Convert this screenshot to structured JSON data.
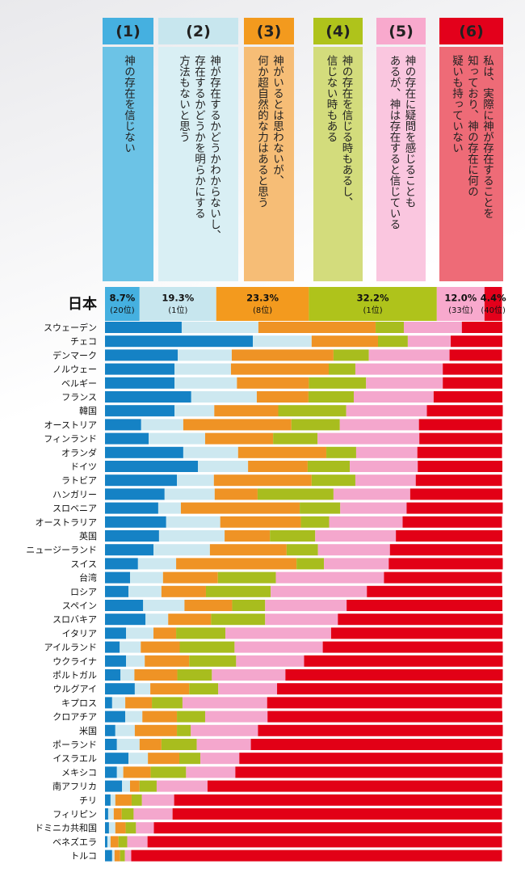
{
  "chart_data": {
    "type": "stacked-bar-horizontal",
    "series": [
      {
        "name": "(1)",
        "lines": [
          "神の存在を信じない"
        ],
        "color": "#1582c5",
        "header_color": "#45b0e0",
        "panel_color": "#6cc3e6",
        "values": [
          19.3,
          37.2,
          18.3,
          17.5,
          17.5,
          21.7,
          17.5,
          9.1,
          11.0,
          19.7,
          23.4,
          18.1,
          15.0,
          13.4,
          15.4,
          13.6,
          12.2,
          8.3,
          6.3,
          5.9,
          9.6,
          10.2,
          5.3,
          3.7,
          5.3,
          3.9,
          7.5,
          1.8,
          5.1,
          2.6,
          3.0,
          5.9,
          3.0,
          4.3,
          1.4,
          0.8,
          1.0,
          0.6,
          1.8
        ]
      },
      {
        "name": "(2)",
        "lines": [
          "神が存在するかどうかわからないし、",
          "存在するかどうかを明らかにする",
          "方法もないと思う"
        ],
        "color": "#cde8f0",
        "header_color": "#c7e6ee",
        "panel_color": "#d9eff4",
        "values": [
          19.3,
          14.8,
          13.6,
          14.2,
          15.7,
          16.5,
          10.0,
          10.6,
          14.2,
          13.8,
          12.6,
          9.3,
          12.6,
          5.7,
          13.6,
          16.5,
          14.2,
          9.6,
          8.3,
          8.3,
          10.4,
          5.7,
          6.9,
          5.3,
          4.7,
          3.5,
          3.9,
          3.3,
          4.3,
          4.9,
          5.7,
          4.9,
          1.6,
          2.0,
          1.2,
          1.4,
          1.6,
          0.8,
          0.6
        ]
      },
      {
        "name": "(3)",
        "lines": [
          "神がいるとは思わないが、",
          "何か超自然的な力はあると思う"
        ],
        "color": "#ef9325",
        "header_color": "#f39a1e",
        "panel_color": "#f6bd76",
        "values": [
          29.5,
          16.7,
          25.6,
          24.6,
          18.1,
          13.0,
          16.1,
          27.2,
          17.1,
          22.2,
          15.0,
          24.6,
          10.8,
          29.9,
          20.3,
          11.4,
          19.3,
          30.3,
          13.8,
          11.2,
          12.0,
          10.8,
          5.7,
          9.8,
          11.2,
          10.8,
          9.8,
          6.7,
          8.7,
          10.6,
          5.5,
          7.9,
          6.9,
          2.4,
          4.1,
          2.0,
          2.6,
          2.0,
          1.4
        ]
      },
      {
        "name": "(4)",
        "lines": [
          "神の存在を信じる時もあるし、",
          "信じない時もある"
        ],
        "color": "#a8bd1e",
        "header_color": "#afc31b",
        "panel_color": "#d3dc7c",
        "values": [
          7.1,
          7.5,
          8.9,
          6.7,
          14.4,
          11.4,
          17.1,
          12.2,
          11.2,
          7.5,
          10.6,
          11.0,
          19.1,
          10.2,
          7.1,
          11.4,
          7.9,
          6.9,
          14.6,
          16.3,
          8.3,
          13.6,
          12.4,
          13.8,
          11.8,
          8.7,
          7.3,
          7.7,
          7.1,
          3.5,
          8.9,
          5.3,
          8.9,
          4.3,
          2.6,
          3.0,
          2.6,
          2.2,
          1.2
        ]
      },
      {
        "name": "(5)",
        "lines": [
          "神の存在に疑問を感じることも",
          "あるが、神は存在すると信じている"
        ],
        "color": "#f4a7cd",
        "header_color": "#f8a9cd",
        "panel_color": "#fac6df",
        "values": [
          14.6,
          10.8,
          20.3,
          22.0,
          19.3,
          20.1,
          20.3,
          19.9,
          25.6,
          15.4,
          17.1,
          15.2,
          19.3,
          16.7,
          18.5,
          20.3,
          18.1,
          16.3,
          27.2,
          24.2,
          20.5,
          18.3,
          26.6,
          22.2,
          17.1,
          18.5,
          14.8,
          21.3,
          15.7,
          16.9,
          13.6,
          9.8,
          12.4,
          12.8,
          8.1,
          9.8,
          4.5,
          5.1,
          1.6
        ]
      },
      {
        "name": "(6)",
        "lines": [
          "私は、実際に神が存在することを",
          "知っており、神の存在に何の",
          "疑いも持っていない"
        ],
        "color": "#e20016",
        "header_color": "#e3001b",
        "panel_color": "#ee6b77",
        "values": [
          10.2,
          13.0,
          13.2,
          15.0,
          15.0,
          17.3,
          19.1,
          20.9,
          20.9,
          21.3,
          21.3,
          21.7,
          23.2,
          24.2,
          25.0,
          26.8,
          28.3,
          28.7,
          29.7,
          34.1,
          39.2,
          41.5,
          43.1,
          45.3,
          50.0,
          54.7,
          56.7,
          59.1,
          59.1,
          61.6,
          63.2,
          66.3,
          67.1,
          74.2,
          82.5,
          82.9,
          87.6,
          89.2,
          93.3
        ]
      }
    ],
    "categories": [
      "スウェーデン",
      "チェコ",
      "デンマーク",
      "ノルウェー",
      "ベルギー",
      "フランス",
      "韓国",
      "オーストリア",
      "フィンランド",
      "オランダ",
      "ドイツ",
      "ラトビア",
      "ハンガリー",
      "スロベニア",
      "オーストラリア",
      "英国",
      "ニュージーランド",
      "スイス",
      "台湾",
      "ロシア",
      "スペイン",
      "スロバキア",
      "イタリア",
      "アイルランド",
      "ウクライナ",
      "ポルトガル",
      "ウルグアイ",
      "キプロス",
      "クロアチア",
      "米国",
      "ポーランド",
      "イスラエル",
      "メキシコ",
      "南アフリカ",
      "チリ",
      "フィリピン",
      "ドミニカ共和国",
      "ベネズエラ",
      "トルコ"
    ],
    "japan": {
      "label": "日本",
      "values": [
        8.7,
        19.3,
        23.3,
        32.2,
        12.0,
        4.4
      ],
      "value_labels": [
        "8.7%",
        "19.3%",
        "23.3%",
        "32.2%",
        "12.0%",
        "4.4%"
      ],
      "ranks": [
        "(20位)",
        "(1位)",
        "(8位)",
        "(1位)",
        "(33位)",
        "(40位)"
      ]
    },
    "xlim": [
      0,
      100
    ]
  }
}
